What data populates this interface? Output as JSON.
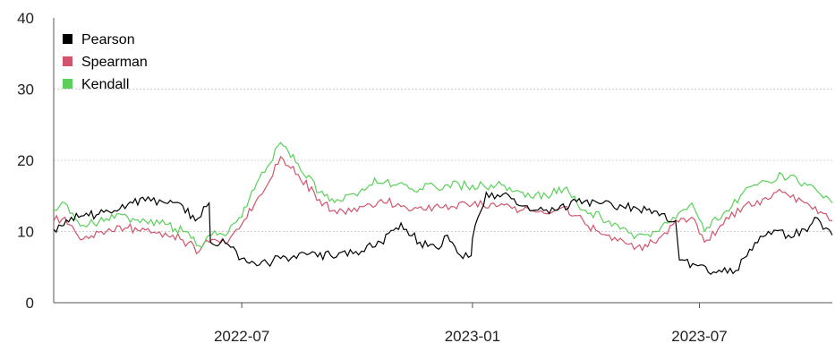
{
  "chart_data": {
    "type": "line",
    "title": "",
    "xlabel": "",
    "ylabel": "",
    "ylim": [
      0,
      40
    ],
    "yticks": [
      "0",
      "10",
      "20",
      "30",
      "40"
    ],
    "xticks": [
      {
        "date": "2022-07-01",
        "label": "2022-07"
      },
      {
        "date": "2023-01-01",
        "label": "2023-01"
      },
      {
        "date": "2023-07-01",
        "label": "2023-07"
      }
    ],
    "xrange": [
      "2022-02-01",
      "2023-10-15"
    ],
    "grid": "horizontal dotted",
    "legend_position": "top-left",
    "series": [
      {
        "name": "Pearson",
        "color": "#000000",
        "points": [
          [
            "2022-02-01",
            10.3
          ],
          [
            "2022-02-15",
            12.0
          ],
          [
            "2022-03-01",
            12.2
          ],
          [
            "2022-03-15",
            13.0
          ],
          [
            "2022-04-01",
            13.8
          ],
          [
            "2022-04-15",
            14.3
          ],
          [
            "2022-05-01",
            14.0
          ],
          [
            "2022-05-15",
            13.6
          ],
          [
            "2022-05-25",
            11.5
          ],
          [
            "2022-06-05",
            14.0
          ],
          [
            "2022-06-06",
            8.5
          ],
          [
            "2022-06-20",
            8.2
          ],
          [
            "2022-07-01",
            6.2
          ],
          [
            "2022-07-15",
            5.3
          ],
          [
            "2022-08-01",
            6.2
          ],
          [
            "2022-08-20",
            7.0
          ],
          [
            "2022-09-10",
            6.6
          ],
          [
            "2022-09-30",
            7.2
          ],
          [
            "2022-10-20",
            8.5
          ],
          [
            "2022-11-01",
            10.5
          ],
          [
            "2022-11-05",
            11.2
          ],
          [
            "2022-11-20",
            8.5
          ],
          [
            "2022-12-05",
            7.5
          ],
          [
            "2022-12-12",
            9.5
          ],
          [
            "2022-12-20",
            7.0
          ],
          [
            "2022-12-31",
            6.6
          ],
          [
            "2023-01-01",
            9.0
          ],
          [
            "2023-01-12",
            15.5
          ],
          [
            "2023-02-01",
            14.6
          ],
          [
            "2023-02-20",
            13.0
          ],
          [
            "2023-03-10",
            13.0
          ],
          [
            "2023-03-25",
            14.2
          ],
          [
            "2023-04-15",
            14.0
          ],
          [
            "2023-05-01",
            13.5
          ],
          [
            "2023-05-20",
            13.0
          ],
          [
            "2023-06-01",
            12.5
          ],
          [
            "2023-06-12",
            11.5
          ],
          [
            "2023-06-15",
            6.0
          ],
          [
            "2023-06-30",
            5.2
          ],
          [
            "2023-07-10",
            4.0
          ],
          [
            "2023-07-30",
            4.5
          ],
          [
            "2023-08-10",
            7.5
          ],
          [
            "2023-08-25",
            10.0
          ],
          [
            "2023-09-10",
            9.5
          ],
          [
            "2023-09-25",
            10.0
          ],
          [
            "2023-10-01",
            12.0
          ],
          [
            "2023-10-10",
            10.5
          ],
          [
            "2023-10-15",
            9.5
          ]
        ]
      },
      {
        "name": "Spearman",
        "color": "#d0556c",
        "points": [
          [
            "2022-02-01",
            11.5
          ],
          [
            "2022-02-10",
            12.0
          ],
          [
            "2022-02-20",
            9.5
          ],
          [
            "2022-03-01",
            9.0
          ],
          [
            "2022-03-15",
            10.0
          ],
          [
            "2022-04-01",
            10.5
          ],
          [
            "2022-04-15",
            10.2
          ],
          [
            "2022-05-01",
            9.8
          ],
          [
            "2022-05-15",
            8.8
          ],
          [
            "2022-05-28",
            7.2
          ],
          [
            "2022-06-05",
            8.5
          ],
          [
            "2022-06-20",
            8.5
          ],
          [
            "2022-07-01",
            11.0
          ],
          [
            "2022-07-15",
            15.0
          ],
          [
            "2022-08-01",
            20.5
          ],
          [
            "2022-08-15",
            18.0
          ],
          [
            "2022-09-01",
            14.5
          ],
          [
            "2022-09-15",
            12.5
          ],
          [
            "2022-10-01",
            12.8
          ],
          [
            "2022-10-20",
            14.5
          ],
          [
            "2022-11-05",
            13.5
          ],
          [
            "2022-11-25",
            13.0
          ],
          [
            "2022-12-15",
            13.5
          ],
          [
            "2023-01-01",
            13.8
          ],
          [
            "2023-01-20",
            13.5
          ],
          [
            "2023-02-10",
            13.0
          ],
          [
            "2023-03-01",
            12.5
          ],
          [
            "2023-03-15",
            13.5
          ],
          [
            "2023-04-01",
            11.0
          ],
          [
            "2023-04-20",
            9.5
          ],
          [
            "2023-05-10",
            7.5
          ],
          [
            "2023-05-25",
            8.5
          ],
          [
            "2023-06-10",
            11.0
          ],
          [
            "2023-06-25",
            12.0
          ],
          [
            "2023-07-05",
            8.5
          ],
          [
            "2023-07-20",
            11.0
          ],
          [
            "2023-08-05",
            13.5
          ],
          [
            "2023-08-25",
            14.5
          ],
          [
            "2023-09-05",
            15.5
          ],
          [
            "2023-09-25",
            14.0
          ],
          [
            "2023-10-10",
            12.5
          ],
          [
            "2023-10-15",
            11.5
          ]
        ]
      },
      {
        "name": "Kendall",
        "color": "#5ad05a",
        "points": [
          [
            "2022-02-01",
            13.0
          ],
          [
            "2022-02-10",
            14.0
          ],
          [
            "2022-02-20",
            11.5
          ],
          [
            "2022-03-01",
            11.0
          ],
          [
            "2022-03-15",
            11.8
          ],
          [
            "2022-04-01",
            12.0
          ],
          [
            "2022-04-15",
            11.5
          ],
          [
            "2022-05-01",
            11.0
          ],
          [
            "2022-05-15",
            10.0
          ],
          [
            "2022-05-28",
            8.0
          ],
          [
            "2022-06-05",
            9.5
          ],
          [
            "2022-06-20",
            9.8
          ],
          [
            "2022-07-01",
            12.0
          ],
          [
            "2022-07-15",
            17.5
          ],
          [
            "2022-08-01",
            22.5
          ],
          [
            "2022-08-15",
            19.5
          ],
          [
            "2022-09-01",
            15.5
          ],
          [
            "2022-09-15",
            14.5
          ],
          [
            "2022-10-01",
            15.0
          ],
          [
            "2022-10-15",
            17.5
          ],
          [
            "2022-11-01",
            16.5
          ],
          [
            "2022-11-20",
            16.0
          ],
          [
            "2022-12-10",
            16.5
          ],
          [
            "2023-01-01",
            16.5
          ],
          [
            "2023-01-20",
            16.5
          ],
          [
            "2023-02-10",
            15.5
          ],
          [
            "2023-03-01",
            15.0
          ],
          [
            "2023-03-15",
            16.0
          ],
          [
            "2023-04-01",
            13.0
          ],
          [
            "2023-04-20",
            11.5
          ],
          [
            "2023-05-10",
            9.0
          ],
          [
            "2023-05-25",
            10.0
          ],
          [
            "2023-06-10",
            12.0
          ],
          [
            "2023-06-25",
            14.0
          ],
          [
            "2023-07-05",
            10.0
          ],
          [
            "2023-07-20",
            12.5
          ],
          [
            "2023-08-05",
            15.5
          ],
          [
            "2023-08-25",
            17.0
          ],
          [
            "2023-09-05",
            18.0
          ],
          [
            "2023-09-25",
            16.5
          ],
          [
            "2023-10-10",
            15.0
          ],
          [
            "2023-10-15",
            14.0
          ]
        ]
      }
    ]
  }
}
